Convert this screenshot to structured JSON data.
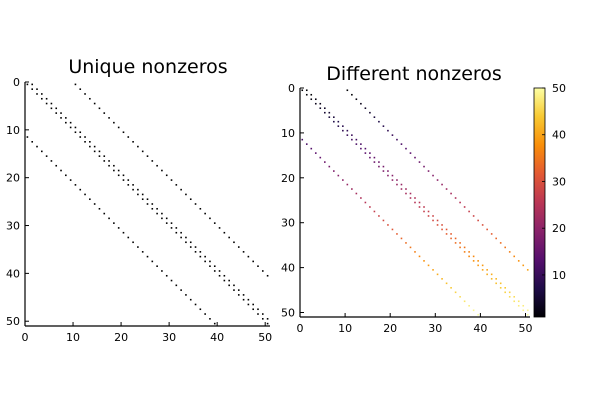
{
  "chart_data": [
    {
      "type": "heatmap",
      "title": "Unique nonzeros",
      "matrix_size": 51,
      "xlim": [
        0,
        51
      ],
      "ylim": [
        51,
        0
      ],
      "x_ticks": [
        0,
        10,
        20,
        30,
        40,
        50
      ],
      "y_ticks": [
        0,
        10,
        20,
        30,
        40,
        50
      ],
      "color": "#000000",
      "diagonals": [
        {
          "offset": -11,
          "start": 0,
          "end": 39
        },
        {
          "offset": 0,
          "start": 0,
          "end": 50
        },
        {
          "offset": 1,
          "start": 0,
          "end": 49
        },
        {
          "offset": 10,
          "start": 0,
          "end": 40
        }
      ]
    },
    {
      "type": "heatmap",
      "title": "Different nonzeros",
      "matrix_size": 51,
      "xlim": [
        0,
        51
      ],
      "ylim": [
        51,
        0
      ],
      "x_ticks": [
        0,
        10,
        20,
        30,
        40,
        50
      ],
      "y_ticks": [
        0,
        10,
        20,
        30,
        40,
        50
      ],
      "colormap": "inferno",
      "color_range": [
        1,
        50
      ],
      "colorbar_ticks": [
        10,
        20,
        30,
        40,
        50
      ],
      "value_rule": "row index",
      "diagonals": [
        {
          "offset": -11,
          "start": 0,
          "end": 39
        },
        {
          "offset": 0,
          "start": 0,
          "end": 50
        },
        {
          "offset": 1,
          "start": 0,
          "end": 49
        },
        {
          "offset": 10,
          "start": 0,
          "end": 40
        }
      ]
    }
  ]
}
